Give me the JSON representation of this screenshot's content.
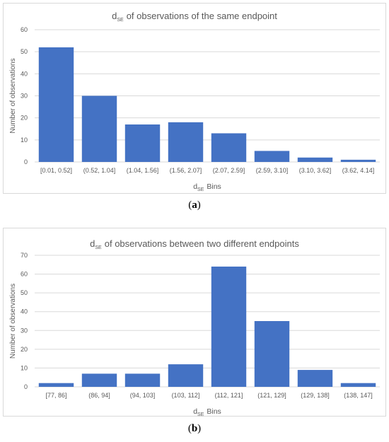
{
  "captions": [
    {
      "open": "(",
      "letter": "a",
      "close": ")"
    },
    {
      "open": "(",
      "letter": "b",
      "close": ")"
    }
  ],
  "colors": {
    "bar": "#4472c4",
    "grid": "#d9d9d9",
    "text": "#595959"
  },
  "chart_data": [
    {
      "type": "bar",
      "title": {
        "main": "d",
        "sub": "SE",
        "rest": "of observations of the same endpoint"
      },
      "xlabel": {
        "main": "d",
        "sub": "SE",
        "rest": "Bins"
      },
      "ylabel": "Number of observations",
      "categories": [
        "[0.01, 0.52]",
        "(0.52, 1.04]",
        "(1.04, 1.56]",
        "(1.56, 2.07]",
        "(2.07, 2.59]",
        "(2.59, 3.10]",
        "(3.10, 3.62]",
        "(3.62, 4.14]"
      ],
      "values": [
        52,
        30,
        17,
        18,
        13,
        5,
        2,
        1
      ],
      "ylim": [
        0,
        60
      ],
      "yticks": [
        0,
        10,
        20,
        30,
        40,
        50,
        60
      ],
      "grid": true
    },
    {
      "type": "bar",
      "title": {
        "main": "d",
        "sub": "SE",
        "rest": "of observations between two different endpoints"
      },
      "xlabel": {
        "main": "d",
        "sub": "SE",
        "rest": "Bins"
      },
      "ylabel": "Number of observations",
      "categories": [
        "[77, 86]",
        "(86, 94]",
        "(94, 103]",
        "(103, 112]",
        "(112, 121]",
        "(121, 129]",
        "(129, 138]",
        "(138, 147]"
      ],
      "values": [
        2,
        7,
        7,
        12,
        64,
        35,
        9,
        2
      ],
      "ylim": [
        0,
        70
      ],
      "yticks": [
        0,
        10,
        20,
        30,
        40,
        50,
        60,
        70
      ],
      "grid": true
    }
  ]
}
